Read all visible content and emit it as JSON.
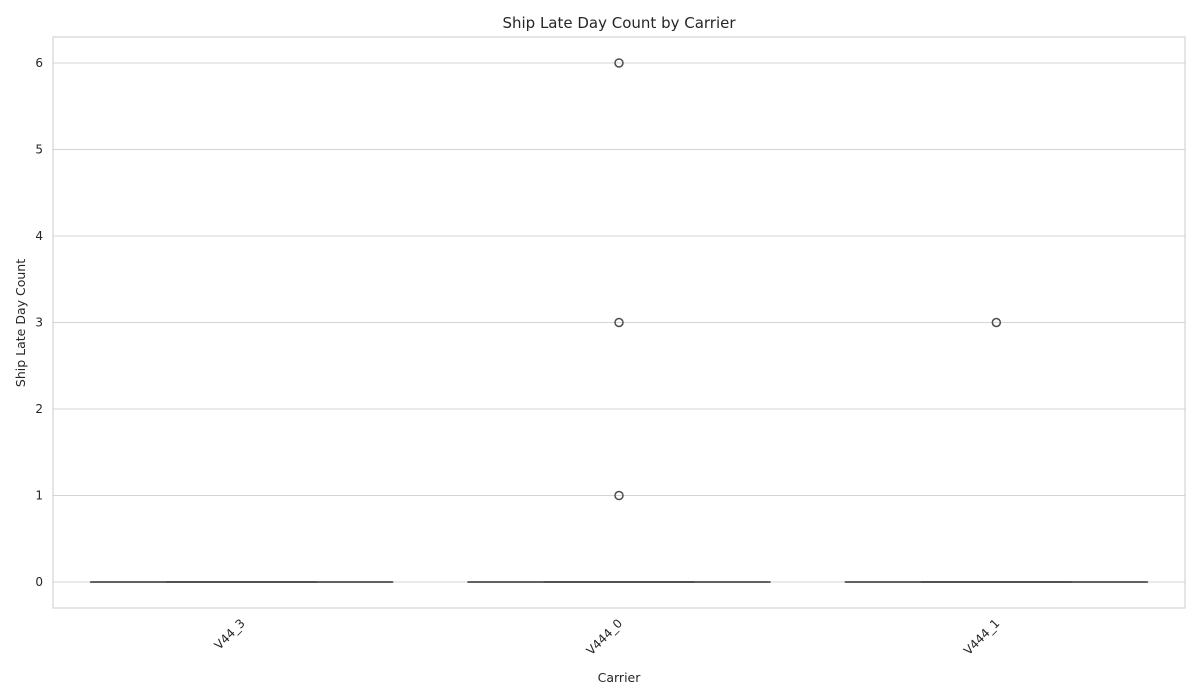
{
  "chart_data": {
    "type": "box",
    "title": "Ship Late Day Count by Carrier",
    "xlabel": "Carrier",
    "ylabel": "Ship Late Day Count",
    "categories": [
      "V44_3",
      "V444_0",
      "V444_1"
    ],
    "ylim": [
      -0.3,
      6.3
    ],
    "yticks": [
      0,
      1,
      2,
      3,
      4,
      5,
      6
    ],
    "grid": true,
    "boxes": [
      {
        "category": "V44_3",
        "whisker_low": 0,
        "q1": 0,
        "median": 0,
        "q3": 0,
        "whisker_high": 0,
        "outliers": []
      },
      {
        "category": "V444_0",
        "whisker_low": 0,
        "q1": 0,
        "median": 0,
        "q3": 0,
        "whisker_high": 0,
        "outliers": [
          1,
          3,
          6
        ]
      },
      {
        "category": "V444_1",
        "whisker_low": 0,
        "q1": 0,
        "median": 0,
        "q3": 0,
        "whisker_high": 0,
        "outliers": [
          3
        ]
      }
    ],
    "colors": {
      "box_line": "#4d4d4d",
      "grid": "#d4d4d4",
      "frame": "#cccccc"
    }
  }
}
